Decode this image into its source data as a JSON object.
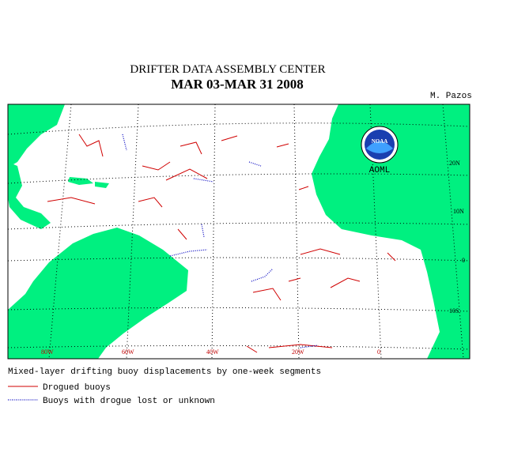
{
  "header": {
    "title": "DRIFTER DATA ASSEMBLY CENTER",
    "subtitle": "MAR 03-MAR 31 2008",
    "author": "M. Pazos"
  },
  "map": {
    "logo": "NOAA",
    "logo_caption": "AOML",
    "lat_labels": [
      "20N",
      "10N",
      "0",
      "10S"
    ],
    "lon_labels": [
      "80W",
      "60W",
      "40W",
      "20W",
      "0"
    ]
  },
  "legend": {
    "caption": "Mixed-layer drifting buoy displacements by one-week  segments",
    "items": [
      "Drogued buoys",
      "Buoys with drogue lost or unknown"
    ]
  }
}
